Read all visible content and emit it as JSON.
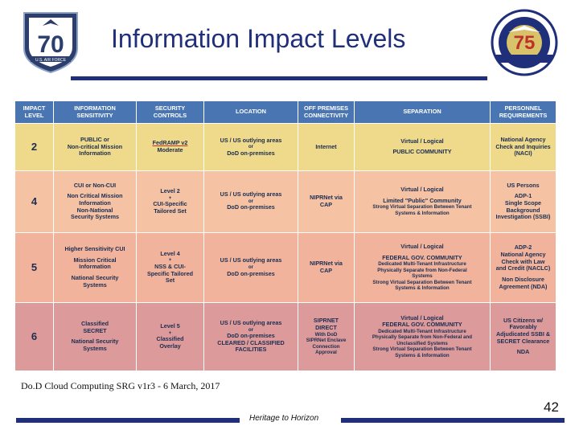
{
  "slide": {
    "title": "Information Impact Levels",
    "footnote": "Do.D Cloud Computing SRG v1r3 - 6 March, 2017",
    "footer": "Heritage to Horizon",
    "page_number": "42"
  },
  "logos": {
    "left": {
      "number": "70",
      "caption": "U.S. AIR FORCE"
    },
    "right": {
      "number": "75"
    }
  },
  "table": {
    "headers": {
      "impact": [
        "IMPACT",
        "LEVEL"
      ],
      "sensitivity": [
        "INFORMATION",
        "SENSITIVITY"
      ],
      "controls": [
        "SECURITY",
        "CONTROLS"
      ],
      "location": "LOCATION",
      "connectivity": [
        "OFF PREMISES",
        "CONNECTIVITY"
      ],
      "separation": "SEPARATION",
      "personnel": [
        "PERSONNEL",
        "REQUIREMENTS"
      ]
    },
    "rows": {
      "r2": {
        "level": "2",
        "sensitivity": [
          "PUBLIC or",
          "Non-critical Mission",
          "Information"
        ],
        "controls": [
          "FedRAMP v2",
          "Moderate"
        ],
        "location": [
          "US / US outlying areas",
          "or",
          "DoD on-premises"
        ],
        "connectivity": "Internet",
        "separation": [
          "Virtual / Logical",
          "PUBLIC COMMUNITY"
        ],
        "personnel": [
          "National Agency",
          "Check and Inquiries",
          "(NACI)"
        ]
      },
      "r4": {
        "level": "4",
        "sensitivity": [
          "CUI  or Non-CUI",
          "Non Critical Mission",
          "Information",
          "Non-National",
          "Security Systems"
        ],
        "controls": [
          "Level 2",
          "+",
          "CUI-Specific",
          "Tailored Set"
        ],
        "location": [
          "US / US outlying areas",
          "or",
          "DoD on-premises"
        ],
        "connectivity": [
          "NIPRNet via",
          "CAP"
        ],
        "separation": [
          "Virtual / Logical",
          "Limited \"Public\" Community",
          "Strong Virtual Separation Between Tenant",
          "Systems & Information"
        ],
        "personnel": [
          "US Persons",
          "ADP-1",
          "Single Scope",
          "Background",
          "Investigation (SSBI)"
        ]
      },
      "r5": {
        "level": "5",
        "sensitivity": [
          "Higher Sensitivity CUI",
          "Mission Critical",
          "Information",
          "National Security",
          "Systems"
        ],
        "controls": [
          "Level 4",
          "+",
          "NSS & CUI-",
          "Specific Tailored",
          "Set"
        ],
        "location": [
          "US / US outlying areas",
          "or",
          "DoD on-premises"
        ],
        "connectivity": [
          "NIPRNet via",
          "CAP"
        ],
        "separation": [
          "Virtual / Logical",
          "FEDERAL GOV. COMMUNITY",
          "Dedicated Multi-Tenant Infrastructure",
          "Physically Separate from Non-Federal",
          "Systems",
          "Strong Virtual Separation Between Tenant",
          "Systems & Information"
        ],
        "personnel": [
          "ADP-2",
          "National Agency",
          "Check with Law",
          "and Credit (NACLC)",
          "Non Disclosure",
          "Agreement (NDA)"
        ]
      },
      "r6": {
        "level": "6",
        "sensitivity": [
          "Classified",
          "SECRET",
          "National Security",
          "Systems"
        ],
        "controls": [
          "Level 5",
          "+",
          "Classified",
          "Overlay"
        ],
        "location": [
          "US / US outlying areas",
          "or",
          "DoD on-premises",
          "CLEARED / CLASSIFIED",
          "FACILITIES"
        ],
        "connectivity": [
          "SIPRNET",
          "DIRECT",
          "With DoD",
          "SIPRNet Enclave",
          "Connection",
          "Approval"
        ],
        "separation": [
          "Virtual / Logical",
          "FEDERAL GOV. COMMUNITY",
          "Dedicated Multi-Tenant Infrastructure",
          "Physically Separate from Non-Federal and",
          "Unclassified Systems",
          "Strong Virtual Separation Between Tenant",
          "Systems & Information"
        ],
        "personnel": [
          "US Citizens w/",
          "Favorably",
          "Adjudicated SSBI &",
          "SECRET Clearance",
          "NDA"
        ]
      }
    }
  }
}
